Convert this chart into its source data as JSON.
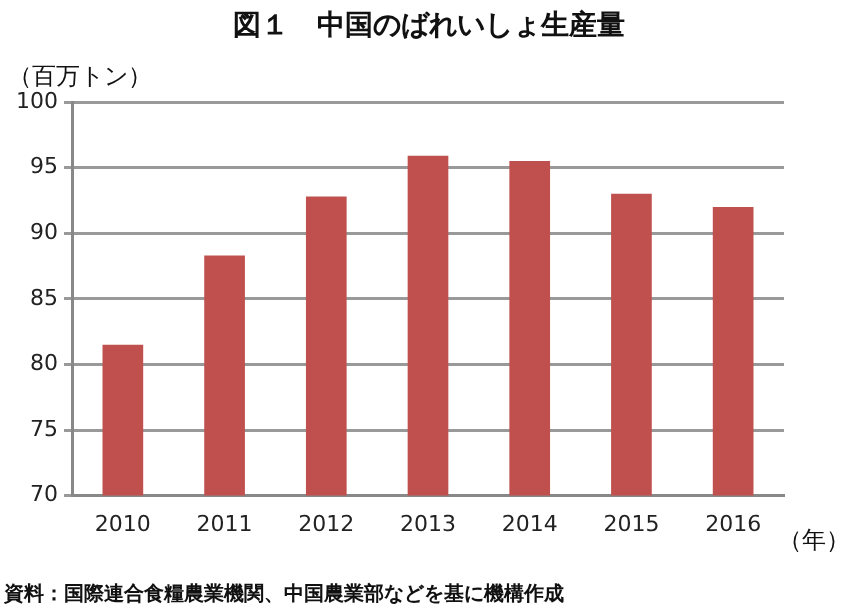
{
  "chart_data": {
    "type": "bar",
    "title": "図１　中国のばれいしょ生産量",
    "ylabel": "（百万トン）",
    "xlabel": "（年）",
    "annotations": [
      "資料：国際連合食糧農業機関、中国農業部などを基に機構作成"
    ],
    "categories": [
      "2010",
      "2011",
      "2012",
      "2013",
      "2014",
      "2015",
      "2016"
    ],
    "values": [
      81.5,
      88.3,
      92.8,
      95.9,
      95.5,
      93.0,
      92.0
    ],
    "color": "#c0504d",
    "ylim": [
      70,
      100
    ],
    "yticks": [
      70,
      75,
      80,
      85,
      90,
      95,
      100
    ],
    "grid": "y",
    "legend": false
  }
}
